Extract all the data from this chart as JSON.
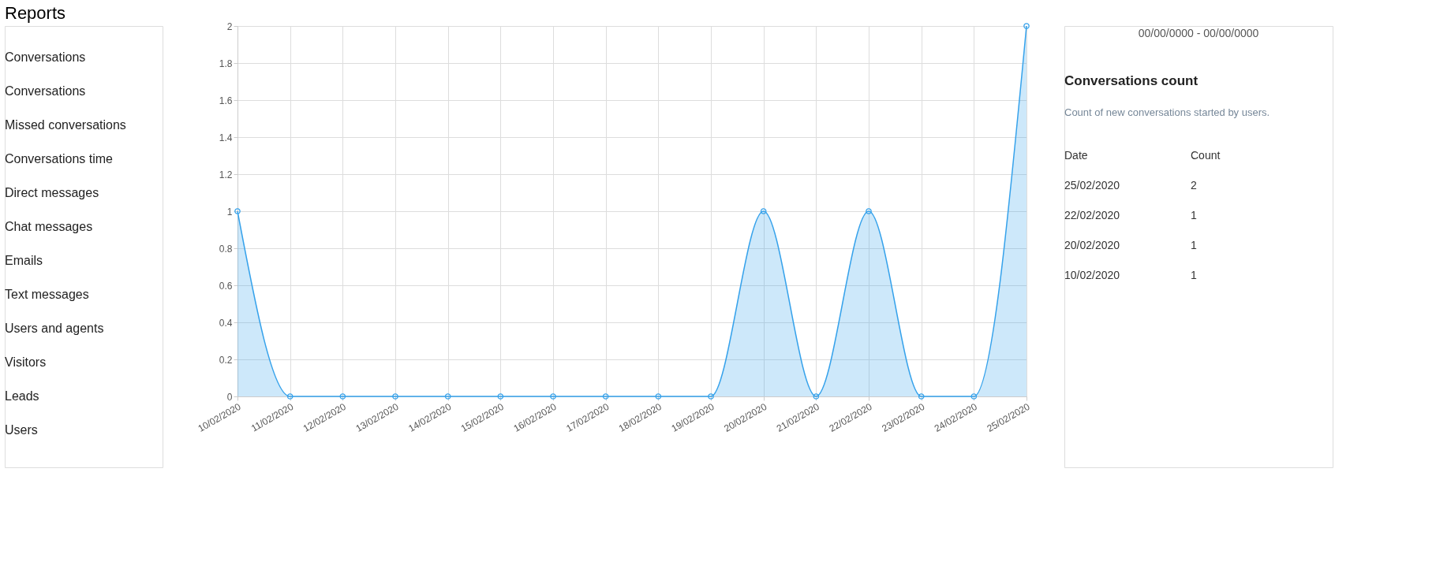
{
  "chart_data": [
    {
      "type": "other",
      "title": "Reports",
      "annotations": [
        "Conversations",
        "Conversations",
        "Missed conversations",
        "Conversations time",
        "Direct messages",
        "Chat messages",
        "Emails",
        "Text messages",
        "Users and agents",
        "Visitors",
        "Leads",
        "Users"
      ]
    },
    {
      "type": "area",
      "categories": [
        "10/02/2020",
        "11/02/2020",
        "12/02/2020",
        "13/02/2020",
        "14/02/2020",
        "15/02/2020",
        "16/02/2020",
        "17/02/2020",
        "18/02/2020",
        "19/02/2020",
        "20/02/2020",
        "21/02/2020",
        "22/02/2020",
        "23/02/2020",
        "24/02/2020",
        "25/02/2020"
      ],
      "series": [
        {
          "color": "#36a2eb",
          "values": [
            1,
            0,
            0,
            0,
            0,
            0,
            0,
            0,
            0,
            0,
            1,
            0,
            1,
            0,
            0,
            2
          ]
        }
      ],
      "ylim": [
        0,
        2
      ],
      "yticks": [
        0,
        0.2,
        0.4,
        0.6,
        0.8,
        1,
        1.2,
        1.4,
        1.6,
        1.8,
        2
      ],
      "grid": true,
      "marker": "circle"
    },
    {
      "type": "other",
      "title": "Conversations count",
      "subtitle": "Count of new conversations started by users.",
      "annotations": [
        "00/00/0000 - 00/00/0000",
        "Date",
        "Count",
        "25/02/2020",
        "2",
        "22/02/2020",
        "1",
        "20/02/2020",
        "1",
        "10/02/2020",
        "1"
      ]
    }
  ]
}
